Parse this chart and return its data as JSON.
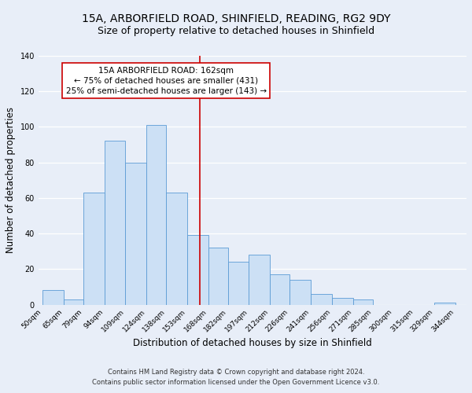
{
  "title_line1": "15A, ARBORFIELD ROAD, SHINFIELD, READING, RG2 9DY",
  "title_line2": "Size of property relative to detached houses in Shinfield",
  "xlabel": "Distribution of detached houses by size in Shinfield",
  "ylabel": "Number of detached properties",
  "bar_left_edges": [
    50,
    65,
    79,
    94,
    109,
    124,
    138,
    153,
    168,
    182,
    197,
    212,
    226,
    241,
    256,
    271,
    285,
    300,
    315,
    329
  ],
  "bar_widths": [
    15,
    14,
    15,
    15,
    15,
    14,
    15,
    15,
    14,
    15,
    15,
    14,
    15,
    15,
    15,
    14,
    15,
    15,
    14,
    15
  ],
  "bar_heights": [
    8,
    3,
    63,
    92,
    80,
    101,
    63,
    39,
    32,
    24,
    28,
    17,
    14,
    6,
    4,
    3,
    0,
    0,
    0,
    1
  ],
  "tick_labels": [
    "50sqm",
    "65sqm",
    "79sqm",
    "94sqm",
    "109sqm",
    "124sqm",
    "138sqm",
    "153sqm",
    "168sqm",
    "182sqm",
    "197sqm",
    "212sqm",
    "226sqm",
    "241sqm",
    "256sqm",
    "271sqm",
    "285sqm",
    "300sqm",
    "315sqm",
    "329sqm",
    "344sqm"
  ],
  "bar_color": "#cce0f5",
  "bar_edge_color": "#5b9bd5",
  "vline_x": 162,
  "vline_color": "#cc0000",
  "annotation_text": "15A ARBORFIELD ROAD: 162sqm\n← 75% of detached houses are smaller (431)\n25% of semi-detached houses are larger (143) →",
  "annotation_box_color": "#ffffff",
  "annotation_box_edge": "#cc0000",
  "ylim": [
    0,
    140
  ],
  "yticks": [
    0,
    20,
    40,
    60,
    80,
    100,
    120,
    140
  ],
  "footnote1": "Contains HM Land Registry data © Crown copyright and database right 2024.",
  "footnote2": "Contains public sector information licensed under the Open Government Licence v3.0.",
  "background_color": "#e8eef8",
  "grid_color": "#ffffff",
  "title_fontsize": 10,
  "subtitle_fontsize": 9,
  "axis_label_fontsize": 8.5,
  "tick_fontsize": 6.5,
  "annot_fontsize": 7.5,
  "footnote_fontsize": 6
}
